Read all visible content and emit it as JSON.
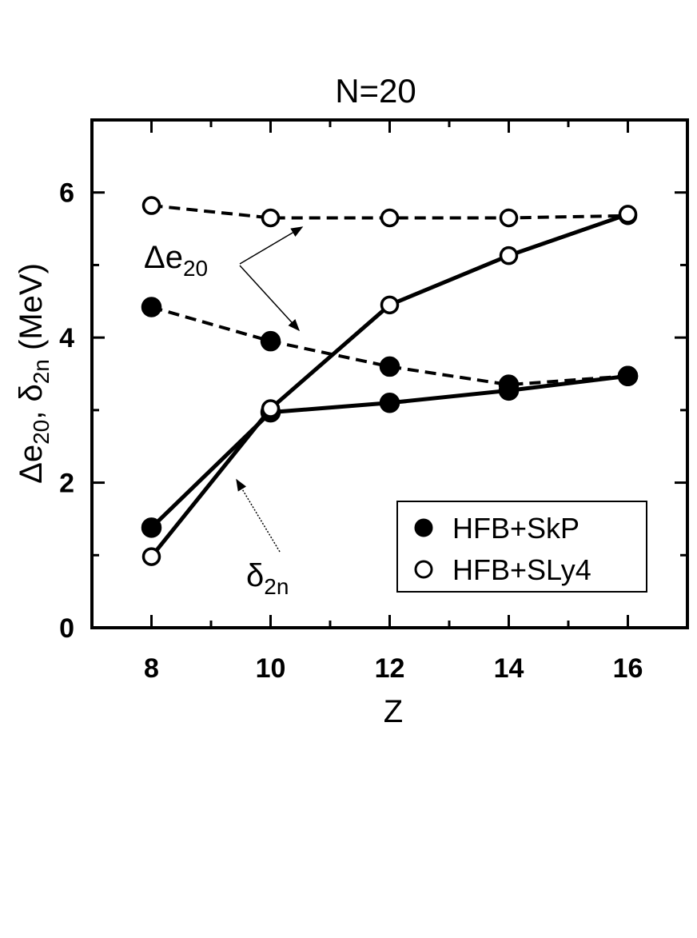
{
  "chart_data": {
    "type": "line",
    "title": "N=20",
    "xlabel": "Z",
    "ylabel": {
      "parts": [
        "Δe",
        "20",
        ", δ",
        "2n",
        " (MeV)"
      ]
    },
    "xlim": [
      7,
      17
    ],
    "ylim": [
      0,
      7
    ],
    "xticks": [
      8,
      10,
      12,
      14,
      16
    ],
    "yticks": [
      0,
      2,
      4,
      6
    ],
    "x_minor_ticks": [
      7,
      8,
      9,
      10,
      11,
      12,
      13,
      14,
      15,
      16,
      17
    ],
    "y_minor_ticks": [
      0,
      1,
      2,
      3,
      4,
      5,
      6,
      7
    ],
    "legend_position": "bottom-right",
    "series": [
      {
        "name": "HFB+SkP",
        "quantity": "Δe20",
        "marker": "filled",
        "line": "dashed",
        "x": [
          8,
          10,
          12,
          14,
          16
        ],
        "y": [
          4.42,
          3.95,
          3.6,
          3.35,
          3.47
        ]
      },
      {
        "name": "HFB+SLy4",
        "quantity": "Δe20",
        "marker": "open",
        "line": "dashed",
        "x": [
          8,
          10,
          12,
          14,
          16
        ],
        "y": [
          5.82,
          5.65,
          5.65,
          5.65,
          5.68
        ]
      },
      {
        "name": "HFB+SkP",
        "quantity": "δ2n",
        "marker": "filled",
        "line": "solid",
        "x": [
          8,
          10,
          12,
          14,
          16
        ],
        "y": [
          1.38,
          2.97,
          3.1,
          3.27,
          3.47
        ]
      },
      {
        "name": "HFB+SLy4",
        "quantity": "δ2n",
        "marker": "open",
        "line": "solid",
        "x": [
          8,
          10,
          12,
          14,
          16
        ],
        "y": [
          0.98,
          3.02,
          4.45,
          5.13,
          5.7
        ]
      }
    ],
    "legend": [
      {
        "label": "HFB+SkP",
        "marker": "filled"
      },
      {
        "label": "HFB+SLy4",
        "marker": "open"
      }
    ],
    "annotations": [
      {
        "main": "Δe",
        "sub": "20"
      },
      {
        "main": "δ",
        "sub": "2n"
      }
    ]
  }
}
